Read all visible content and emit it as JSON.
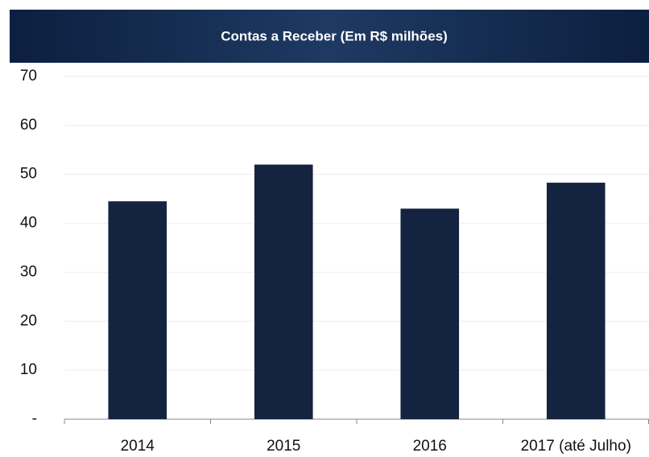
{
  "chart_data": {
    "type": "bar",
    "title": "Contas a Receber (Em R$ milhões)",
    "categories": [
      "2014",
      "2015",
      "2016",
      "2017 (até Julho)"
    ],
    "values": [
      44.5,
      52,
      43,
      48.3
    ],
    "color": "#14233f",
    "ylim": [
      0,
      70
    ],
    "yticks": [
      {
        "value": 0,
        "label": "-"
      },
      10,
      20,
      30,
      40,
      50,
      60,
      70
    ],
    "grid": true
  }
}
